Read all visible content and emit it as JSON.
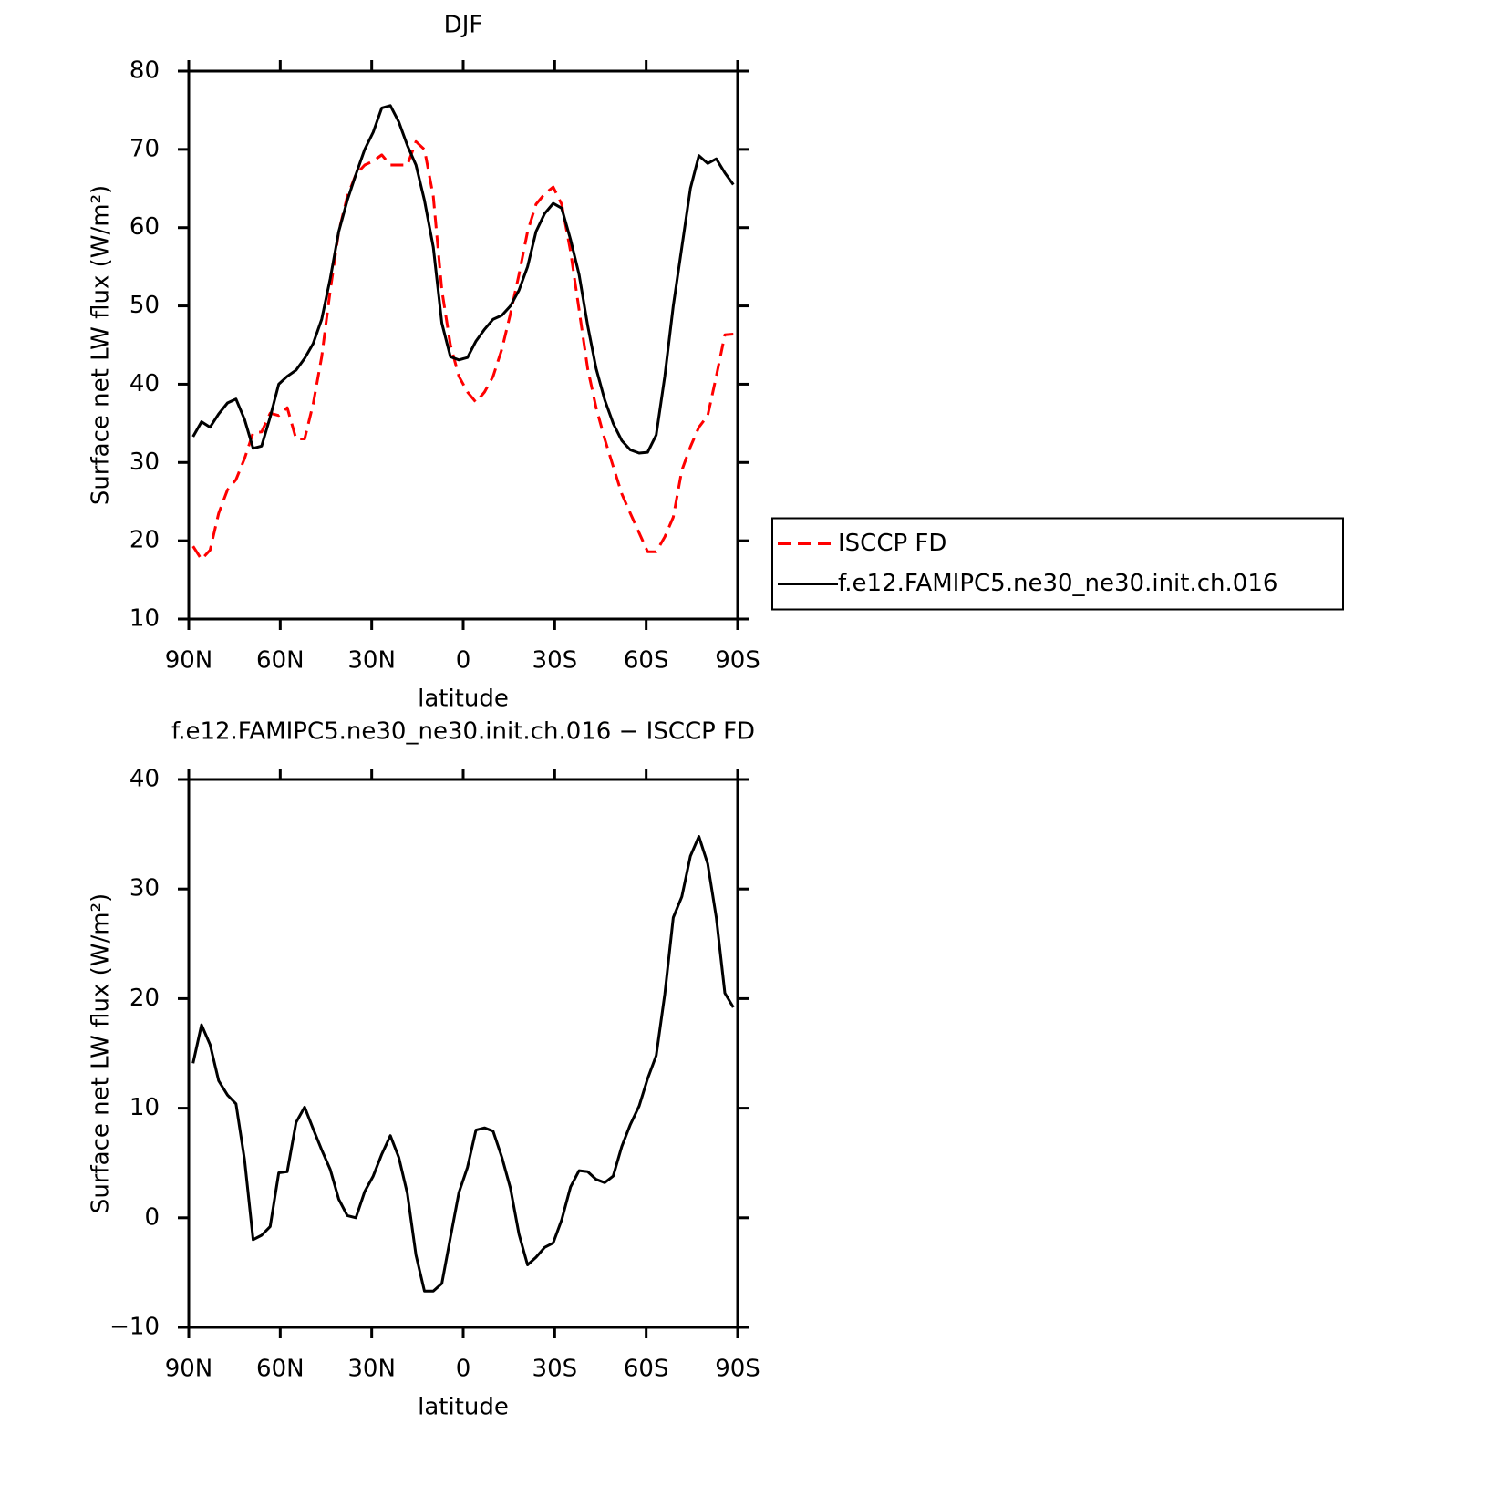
{
  "chart_data": [
    {
      "type": "line",
      "title": "DJF",
      "xlabel": "latitude",
      "ylabel": "Surface net LW flux (W/m²)",
      "x": [
        88.6,
        85.8,
        83.0,
        80.2,
        77.3,
        74.5,
        71.7,
        68.9,
        66.1,
        63.3,
        60.5,
        57.7,
        54.8,
        52.0,
        49.2,
        46.4,
        43.6,
        40.8,
        38.0,
        35.2,
        32.3,
        29.5,
        26.7,
        23.9,
        21.1,
        18.3,
        15.5,
        12.7,
        9.8,
        7.0,
        4.2,
        1.4,
        -1.4,
        -4.2,
        -7.0,
        -9.8,
        -12.7,
        -15.5,
        -18.3,
        -21.1,
        -23.9,
        -26.7,
        -29.5,
        -32.3,
        -35.2,
        -38.0,
        -40.8,
        -43.6,
        -46.4,
        -49.2,
        -52.0,
        -54.8,
        -57.7,
        -60.5,
        -63.3,
        -66.1,
        -68.9,
        -71.7,
        -74.5,
        -77.3,
        -80.2,
        -83.0,
        -85.8,
        -88.6
      ],
      "xlim": [
        90,
        -90
      ],
      "xticks": [
        {
          "value": 90,
          "label": "90N"
        },
        {
          "value": 60,
          "label": "60N"
        },
        {
          "value": 30,
          "label": "30N"
        },
        0,
        {
          "value": -30,
          "label": "30S"
        },
        {
          "value": -60,
          "label": "60S"
        },
        {
          "value": -90,
          "label": "90S"
        }
      ],
      "ylim": [
        10,
        80
      ],
      "yticks": [
        10,
        20,
        30,
        40,
        50,
        60,
        70,
        80
      ],
      "legend": "right",
      "series": [
        {
          "name": "ISCCP FD",
          "color": "#ff0000",
          "dashed": true,
          "values": [
            19.3,
            17.6,
            18.8,
            23.5,
            26.5,
            27.8,
            30.5,
            33.8,
            33.9,
            36.3,
            36.0,
            37.0,
            33.0,
            33.0,
            37.5,
            43.5,
            52.0,
            59.5,
            64.0,
            66.8,
            68.0,
            68.5,
            69.3,
            68.0,
            68.0,
            68.0,
            71.0,
            70.0,
            64.0,
            52.0,
            45.0,
            41.0,
            39.0,
            37.7,
            39.0,
            41.0,
            44.5,
            49.0,
            54.0,
            59.5,
            63.0,
            64.3,
            65.2,
            63.0,
            57.0,
            49.5,
            42.0,
            37.0,
            33.0,
            29.5,
            26.0,
            23.5,
            21.0,
            18.6,
            18.6,
            20.5,
            23.0,
            29.0,
            32.0,
            34.5,
            36.0,
            41.0,
            46.3,
            46.4
          ]
        },
        {
          "name": "f.e12.FAMIPC5.ne30_ne30.init.ch.016",
          "color": "#000000",
          "dashed": false,
          "values": [
            33.3,
            35.2,
            34.5,
            36.2,
            37.6,
            38.1,
            35.5,
            31.8,
            32.1,
            35.8,
            40.0,
            41.0,
            41.8,
            43.3,
            45.2,
            48.3,
            53.5,
            59.5,
            63.5,
            66.8,
            70.0,
            72.2,
            75.3,
            75.6,
            73.5,
            70.5,
            68.0,
            63.5,
            57.5,
            47.8,
            43.5,
            43.1,
            43.4,
            45.5,
            47.0,
            48.3,
            48.8,
            50.0,
            52.0,
            55.0,
            59.5,
            61.8,
            63.1,
            62.5,
            58.5,
            54.0,
            47.5,
            42.0,
            38.0,
            35.0,
            32.8,
            31.6,
            31.2,
            31.3,
            33.5,
            41.0,
            50.0,
            57.5,
            65.0,
            69.2,
            68.2,
            68.8,
            67.0,
            65.5
          ]
        }
      ]
    },
    {
      "type": "line",
      "title": "f.e12.FAMIPC5.ne30_ne30.init.ch.016 − ISCCP FD",
      "xlabel": "latitude",
      "ylabel": "Surface net LW flux (W/m²)",
      "x": [
        88.6,
        85.8,
        83.0,
        80.2,
        77.3,
        74.5,
        71.7,
        68.9,
        66.1,
        63.3,
        60.5,
        57.7,
        54.8,
        52.0,
        49.2,
        46.4,
        43.6,
        40.8,
        38.0,
        35.2,
        32.3,
        29.5,
        26.7,
        23.9,
        21.1,
        18.3,
        15.5,
        12.7,
        9.8,
        7.0,
        4.2,
        1.4,
        -1.4,
        -4.2,
        -7.0,
        -9.8,
        -12.7,
        -15.5,
        -18.3,
        -21.1,
        -23.9,
        -26.7,
        -29.5,
        -32.3,
        -35.2,
        -38.0,
        -40.8,
        -43.6,
        -46.4,
        -49.2,
        -52.0,
        -54.8,
        -57.7,
        -60.5,
        -63.3,
        -66.1,
        -68.9,
        -71.7,
        -74.5,
        -77.3,
        -80.2,
        -83.0,
        -85.8,
        -88.6
      ],
      "xlim": [
        90,
        -90
      ],
      "xticks": [
        {
          "value": 90,
          "label": "90N"
        },
        {
          "value": 60,
          "label": "60N"
        },
        {
          "value": 30,
          "label": "30N"
        },
        0,
        {
          "value": -30,
          "label": "30S"
        },
        {
          "value": -60,
          "label": "60S"
        },
        {
          "value": -90,
          "label": "90S"
        }
      ],
      "ylim": [
        -10,
        40
      ],
      "yticks": [
        {
          "value": -10,
          "label": "−10"
        },
        0,
        10,
        20,
        30,
        40
      ],
      "series": [
        {
          "color": "#000000",
          "dashed": false,
          "values": [
            14.1,
            17.6,
            15.8,
            12.5,
            11.2,
            10.4,
            5.3,
            -2.0,
            -1.6,
            -0.8,
            4.1,
            4.2,
            8.7,
            10.1,
            8.1,
            6.2,
            4.4,
            1.7,
            0.2,
            0.0,
            2.4,
            3.8,
            5.8,
            7.5,
            5.5,
            2.2,
            -3.4,
            -6.7,
            -6.7,
            -6.0,
            -1.8,
            2.3,
            4.6,
            8.0,
            8.2,
            7.9,
            5.5,
            2.7,
            -1.5,
            -4.3,
            -3.6,
            -2.7,
            -2.3,
            -0.2,
            2.8,
            4.3,
            4.2,
            3.5,
            3.2,
            3.8,
            6.5,
            8.5,
            10.2,
            12.7,
            14.8,
            20.4,
            27.4,
            29.3,
            33.0,
            34.8,
            32.3,
            27.4,
            20.5,
            19.2
          ]
        }
      ]
    }
  ]
}
